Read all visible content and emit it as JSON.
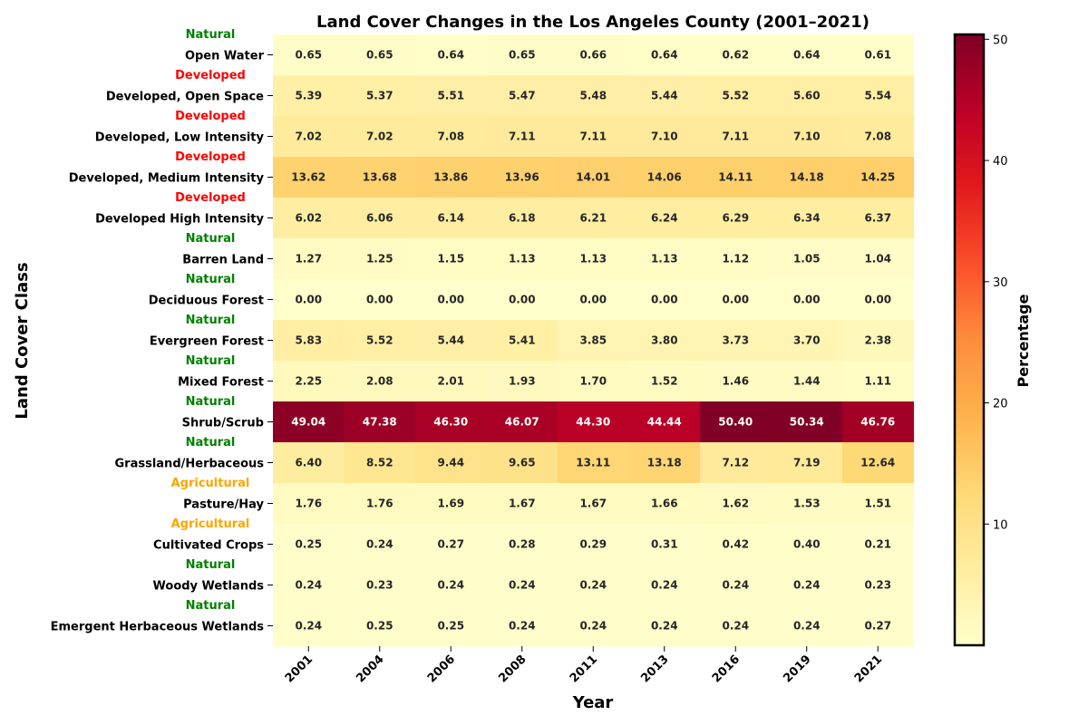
{
  "chart_data": {
    "type": "heatmap",
    "title": "Land Cover Changes in the Los Angeles County (2001–2021)",
    "xlabel": "Year",
    "ylabel": "Land Cover Class",
    "colorbar_label": "Percentage",
    "colormap": "YlOrRd",
    "color_range": [
      0.0,
      50.4
    ],
    "colorbar_ticks": [
      "10",
      "20",
      "30",
      "40",
      "50"
    ],
    "colorbar_tick_values": [
      10,
      20,
      30,
      40,
      50
    ],
    "group_colors": {
      "Natural": "#008000",
      "Developed": "#ff0000",
      "Agricultural": "#ffa500"
    },
    "years": [
      "2001",
      "2004",
      "2006",
      "2008",
      "2011",
      "2013",
      "2016",
      "2019",
      "2021"
    ],
    "rows": [
      {
        "class": "Open Water",
        "group": "Natural",
        "values": [
          0.65,
          0.65,
          0.64,
          0.65,
          0.66,
          0.64,
          0.62,
          0.64,
          0.61
        ],
        "labels": [
          "0.65",
          "0.65",
          "0.64",
          "0.65",
          "0.66",
          "0.64",
          "0.62",
          "0.64",
          "0.61"
        ]
      },
      {
        "class": "Developed, Open Space",
        "group": "Developed",
        "values": [
          5.39,
          5.37,
          5.51,
          5.47,
          5.48,
          5.44,
          5.52,
          5.6,
          5.54
        ],
        "labels": [
          "5.39",
          "5.37",
          "5.51",
          "5.47",
          "5.48",
          "5.44",
          "5.52",
          "5.60",
          "5.54"
        ]
      },
      {
        "class": "Developed, Low Intensity",
        "group": "Developed",
        "values": [
          7.02,
          7.02,
          7.08,
          7.11,
          7.11,
          7.1,
          7.11,
          7.1,
          7.08
        ],
        "labels": [
          "7.02",
          "7.02",
          "7.08",
          "7.11",
          "7.11",
          "7.10",
          "7.11",
          "7.10",
          "7.08"
        ]
      },
      {
        "class": "Developed, Medium Intensity",
        "group": "Developed",
        "values": [
          13.62,
          13.68,
          13.86,
          13.96,
          14.01,
          14.06,
          14.11,
          14.18,
          14.25
        ],
        "labels": [
          "13.62",
          "13.68",
          "13.86",
          "13.96",
          "14.01",
          "14.06",
          "14.11",
          "14.18",
          "14.25"
        ]
      },
      {
        "class": "Developed High Intensity",
        "group": "Developed",
        "values": [
          6.02,
          6.06,
          6.14,
          6.18,
          6.21,
          6.24,
          6.29,
          6.34,
          6.37
        ],
        "labels": [
          "6.02",
          "6.06",
          "6.14",
          "6.18",
          "6.21",
          "6.24",
          "6.29",
          "6.34",
          "6.37"
        ]
      },
      {
        "class": "Barren Land",
        "group": "Natural",
        "values": [
          1.27,
          1.25,
          1.15,
          1.13,
          1.13,
          1.13,
          1.12,
          1.05,
          1.04
        ],
        "labels": [
          "1.27",
          "1.25",
          "1.15",
          "1.13",
          "1.13",
          "1.13",
          "1.12",
          "1.05",
          "1.04"
        ]
      },
      {
        "class": "Deciduous Forest",
        "group": "Natural",
        "values": [
          0.0,
          0.0,
          0.0,
          0.0,
          0.0,
          0.0,
          0.0,
          0.0,
          0.0
        ],
        "labels": [
          "0.00",
          "0.00",
          "0.00",
          "0.00",
          "0.00",
          "0.00",
          "0.00",
          "0.00",
          "0.00"
        ]
      },
      {
        "class": "Evergreen Forest",
        "group": "Natural",
        "values": [
          5.83,
          5.52,
          5.44,
          5.41,
          3.85,
          3.8,
          3.73,
          3.7,
          2.38
        ],
        "labels": [
          "5.83",
          "5.52",
          "5.44",
          "5.41",
          "3.85",
          "3.80",
          "3.73",
          "3.70",
          "2.38"
        ]
      },
      {
        "class": "Mixed Forest",
        "group": "Natural",
        "values": [
          2.25,
          2.08,
          2.01,
          1.93,
          1.7,
          1.52,
          1.46,
          1.44,
          1.11
        ],
        "labels": [
          "2.25",
          "2.08",
          "2.01",
          "1.93",
          "1.70",
          "1.52",
          "1.46",
          "1.44",
          "1.11"
        ]
      },
      {
        "class": "Shrub/Scrub",
        "group": "Natural",
        "values": [
          49.04,
          47.38,
          46.3,
          46.07,
          44.3,
          44.44,
          50.4,
          50.34,
          46.76
        ],
        "labels": [
          "49.04",
          "47.38",
          "46.30",
          "46.07",
          "44.30",
          "44.44",
          "50.40",
          "50.34",
          "46.76"
        ]
      },
      {
        "class": "Grassland/Herbaceous",
        "group": "Natural",
        "values": [
          6.4,
          8.52,
          9.44,
          9.65,
          13.11,
          13.18,
          7.12,
          7.19,
          12.64
        ],
        "labels": [
          "6.40",
          "8.52",
          "9.44",
          "9.65",
          "13.11",
          "13.18",
          "7.12",
          "7.19",
          "12.64"
        ]
      },
      {
        "class": "Pasture/Hay",
        "group": "Agricultural",
        "values": [
          1.76,
          1.76,
          1.69,
          1.67,
          1.67,
          1.66,
          1.62,
          1.53,
          1.51
        ],
        "labels": [
          "1.76",
          "1.76",
          "1.69",
          "1.67",
          "1.67",
          "1.66",
          "1.62",
          "1.53",
          "1.51"
        ]
      },
      {
        "class": "Cultivated Crops",
        "group": "Agricultural",
        "values": [
          0.25,
          0.24,
          0.27,
          0.28,
          0.29,
          0.31,
          0.42,
          0.4,
          0.21
        ],
        "labels": [
          "0.25",
          "0.24",
          "0.27",
          "0.28",
          "0.29",
          "0.31",
          "0.42",
          "0.40",
          "0.21"
        ]
      },
      {
        "class": "Woody Wetlands",
        "group": "Natural",
        "values": [
          0.24,
          0.23,
          0.24,
          0.24,
          0.24,
          0.24,
          0.24,
          0.24,
          0.23
        ],
        "labels": [
          "0.24",
          "0.23",
          "0.24",
          "0.24",
          "0.24",
          "0.24",
          "0.24",
          "0.24",
          "0.23"
        ]
      },
      {
        "class": "Emergent Herbaceous Wetlands",
        "group": "Natural",
        "values": [
          0.24,
          0.25,
          0.25,
          0.24,
          0.24,
          0.24,
          0.24,
          0.24,
          0.27
        ],
        "labels": [
          "0.24",
          "0.25",
          "0.25",
          "0.24",
          "0.24",
          "0.24",
          "0.24",
          "0.24",
          "0.27"
        ]
      }
    ]
  }
}
